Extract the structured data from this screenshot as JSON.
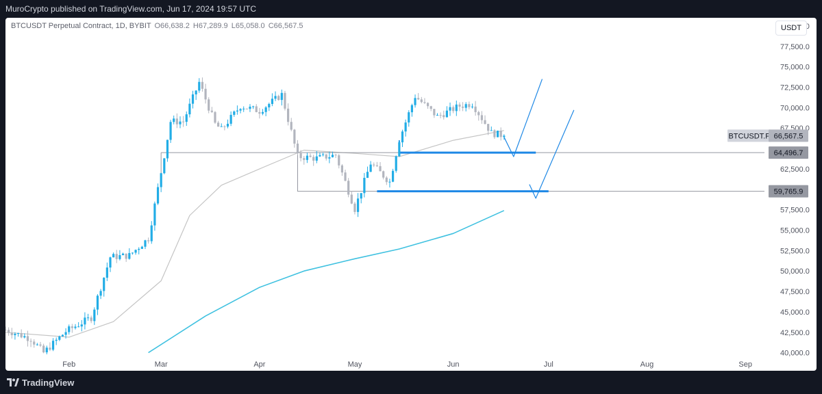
{
  "header": {
    "publisher_line": "MuroCrypto published on TradingView.com, Jun 17, 2024 19:57 UTC"
  },
  "legend": {
    "symbol": "BTCUSDT Perpetual Contract, 1D, BYBIT",
    "open": "O66,638.2",
    "high": "H67,289.9",
    "low": "L65,058.0",
    "close": "C66,567.5"
  },
  "currency_button": "USDT",
  "footer": {
    "brand": "TradingView"
  },
  "colors": {
    "up": "#22ade6",
    "down": "#b2b5be",
    "ma_short": "#c4c4c4",
    "ma_long": "#3fc1e0",
    "levels": "#1e88e5",
    "background": "#ffffff"
  },
  "chart_data": {
    "type": "candlestick",
    "symbol_label": "BTCUSDT.P",
    "last_price_label": "66,567.5",
    "level_labels": [
      "64,496.7",
      "59,765.9"
    ],
    "levels": [
      64496.7,
      59765.9
    ],
    "y_ticks": [
      "80,000.0",
      "77,500.0",
      "75,000.0",
      "72,500.0",
      "70,000.0",
      "67,500.0",
      "62,500.0",
      "57,500.0",
      "55,000.0",
      "52,500.0",
      "50,000.0",
      "47,500.0",
      "45,000.0",
      "42,500.0",
      "40,000.0"
    ],
    "y_tick_values": [
      80000,
      77500,
      75000,
      72500,
      70000,
      67500,
      62500,
      57500,
      55000,
      52500,
      50000,
      47500,
      45000,
      42500,
      40000
    ],
    "x_ticks": [
      "Feb",
      "Mar",
      "Apr",
      "May",
      "Jun",
      "Jul",
      "Aug",
      "Sep"
    ],
    "x_tick_dates": [
      "2024-02-01",
      "2024-03-01",
      "2024-04-01",
      "2024-05-01",
      "2024-06-01",
      "2024-07-01",
      "2024-08-01",
      "2024-09-01"
    ],
    "ylim": [
      39800,
      81000
    ],
    "xlim": [
      "2024-01-12",
      "2024-09-07"
    ],
    "last_close": 66567.5,
    "closes_sampled": [
      [
        "2024-01-12",
        42800
      ],
      [
        "2024-01-20",
        41700
      ],
      [
        "2024-01-24",
        40000
      ],
      [
        "2024-01-31",
        42600
      ],
      [
        "2024-02-08",
        44300
      ],
      [
        "2024-02-14",
        51700
      ],
      [
        "2024-02-20",
        51900
      ],
      [
        "2024-02-26",
        54000
      ],
      [
        "2024-03-01",
        62100
      ],
      [
        "2024-03-04",
        68300
      ],
      [
        "2024-03-08",
        68300
      ],
      [
        "2024-03-13",
        73100
      ],
      [
        "2024-03-18",
        68000
      ],
      [
        "2024-03-20",
        67300
      ],
      [
        "2024-03-26",
        70200
      ],
      [
        "2024-04-01",
        69600
      ],
      [
        "2024-04-08",
        71600
      ],
      [
        "2024-04-13",
        64000
      ],
      [
        "2024-04-19",
        63800
      ],
      [
        "2024-04-25",
        64200
      ],
      [
        "2024-05-01",
        57600
      ],
      [
        "2024-05-06",
        63200
      ],
      [
        "2024-05-12",
        60900
      ],
      [
        "2024-05-15",
        66100
      ],
      [
        "2024-05-20",
        71400
      ],
      [
        "2024-05-27",
        68900
      ],
      [
        "2024-06-03",
        70200
      ],
      [
        "2024-06-07",
        70500
      ],
      [
        "2024-06-13",
        66900
      ],
      [
        "2024-06-17",
        66567.5
      ]
    ],
    "ma_short_points": [
      [
        "2024-01-12",
        42500
      ],
      [
        "2024-02-01",
        41900
      ],
      [
        "2024-02-15",
        43800
      ],
      [
        "2024-03-01",
        48800
      ],
      [
        "2024-03-10",
        56800
      ],
      [
        "2024-03-20",
        60500
      ],
      [
        "2024-04-01",
        62500
      ],
      [
        "2024-04-15",
        64800
      ],
      [
        "2024-05-01",
        64400
      ],
      [
        "2024-05-15",
        64000
      ],
      [
        "2024-06-01",
        66000
      ],
      [
        "2024-06-17",
        67200
      ]
    ],
    "ma_long_points": [
      [
        "2024-02-26",
        40000
      ],
      [
        "2024-03-15",
        44500
      ],
      [
        "2024-04-01",
        48000
      ],
      [
        "2024-04-15",
        50000
      ],
      [
        "2024-05-01",
        51500
      ],
      [
        "2024-05-15",
        52700
      ],
      [
        "2024-06-01",
        54600
      ],
      [
        "2024-06-17",
        57400
      ]
    ],
    "projection_paths": [
      [
        [
          "2024-06-17",
          66400
        ],
        [
          "2024-06-20",
          64000
        ],
        [
          "2024-06-29",
          73500
        ]
      ],
      [
        [
          "2024-06-25",
          60600
        ],
        [
          "2024-06-27",
          58900
        ],
        [
          "2024-07-09",
          69700
        ]
      ]
    ]
  }
}
